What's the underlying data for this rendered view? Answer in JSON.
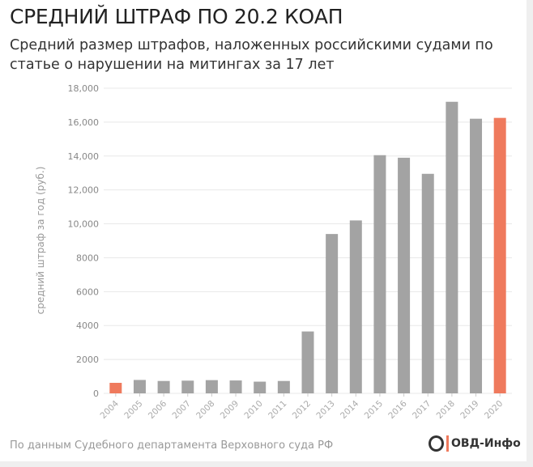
{
  "header": {
    "title": "СРЕДНИЙ ШТРАФ ПО 20.2 КОАП",
    "subtitle": "Средний размер штрафов, наложенных российскими судами по статье о нарушении на митингах за 17 лет"
  },
  "footer": {
    "source": "По данным Судебного департамента Верховного суда РФ",
    "logo_text": "ОВД-Инфо"
  },
  "colors": {
    "bar": "#a3a3a3",
    "highlight": "#ef7a5d",
    "grid": "#e8e8e8"
  },
  "chart_data": {
    "type": "bar",
    "title": "СРЕДНИЙ ШТРАФ ПО 20.2 КОАП",
    "xlabel": "",
    "ylabel": "средний штраф за год (руб.)",
    "ylim": [
      0,
      18000
    ],
    "yticks": [
      0,
      2000,
      4000,
      6000,
      8000,
      "10,000",
      "12,000",
      "14,000",
      "16,000",
      "18,000"
    ],
    "ytick_values": [
      0,
      2000,
      4000,
      6000,
      8000,
      10000,
      12000,
      14000,
      16000,
      18000
    ],
    "categories": [
      "2004",
      "2005",
      "2006",
      "2007",
      "2008",
      "2009",
      "2010",
      "2011",
      "2012",
      "2013",
      "2014",
      "2015",
      "2016",
      "2017",
      "2018",
      "2019",
      "2020"
    ],
    "values": [
      620,
      790,
      730,
      750,
      780,
      760,
      690,
      730,
      3650,
      9400,
      10200,
      14050,
      13900,
      12950,
      17200,
      16200,
      16250
    ],
    "highlighted": [
      "2004",
      "2020"
    ],
    "grid": true
  }
}
